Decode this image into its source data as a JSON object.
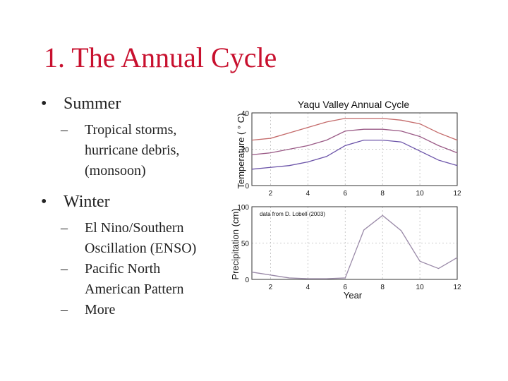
{
  "slide": {
    "title": "1. The Annual Cycle",
    "bullets": [
      {
        "marker": "•",
        "text": "Summer",
        "children": [
          {
            "marker": "–",
            "lines": [
              "Tropical storms,",
              "hurricane debris,",
              "(monsoon)"
            ]
          }
        ]
      },
      {
        "marker": "•",
        "text": "Winter",
        "children": [
          {
            "marker": "–",
            "lines": [
              "El Nino/Southern",
              "Oscillation (ENSO)"
            ]
          },
          {
            "marker": "–",
            "lines": [
              "Pacific North",
              "American Pattern"
            ]
          },
          {
            "marker": "–",
            "lines": [
              "More"
            ]
          }
        ]
      }
    ]
  },
  "chart_data": [
    {
      "type": "line",
      "title": "Yaqu  Valley Annual Cycle",
      "ylabel": "Temperature ( ° C)",
      "xlabel": "",
      "xlim": [
        1,
        12
      ],
      "ylim": [
        0,
        40
      ],
      "xticks": [
        2,
        4,
        6,
        8,
        10,
        12
      ],
      "yticks": [
        0,
        20,
        40
      ],
      "grid": true,
      "x": [
        1,
        2,
        3,
        4,
        5,
        6,
        7,
        8,
        9,
        10,
        11,
        12
      ],
      "series": [
        {
          "values": [
            25,
            26,
            29,
            32,
            35,
            37,
            37,
            37,
            36,
            34,
            29,
            25
          ],
          "color": "#c46a6a"
        },
        {
          "values": [
            17,
            18,
            20,
            22,
            25,
            30,
            31,
            31,
            30,
            27,
            22,
            18
          ],
          "color": "#9a5a86"
        },
        {
          "values": [
            9,
            10,
            11,
            13,
            16,
            22,
            25,
            25,
            24,
            19,
            14,
            11
          ],
          "color": "#6a52a8"
        }
      ]
    },
    {
      "type": "line",
      "title": "",
      "ylabel": "Precipitation (cm)",
      "xlabel": "Year",
      "annotation": "data from D. Lobell (2003)",
      "xlim": [
        1,
        12
      ],
      "ylim": [
        0,
        100
      ],
      "xticks": [
        2,
        4,
        6,
        8,
        10,
        12
      ],
      "yticks": [
        0,
        50,
        100
      ],
      "grid": true,
      "x": [
        1,
        2,
        3,
        4,
        5,
        6,
        7,
        8,
        9,
        10,
        11,
        12
      ],
      "series": [
        {
          "values": [
            10,
            6,
            2,
            1,
            1,
            2,
            68,
            88,
            67,
            25,
            15,
            30
          ],
          "color": "#9a8aa8"
        }
      ]
    }
  ]
}
